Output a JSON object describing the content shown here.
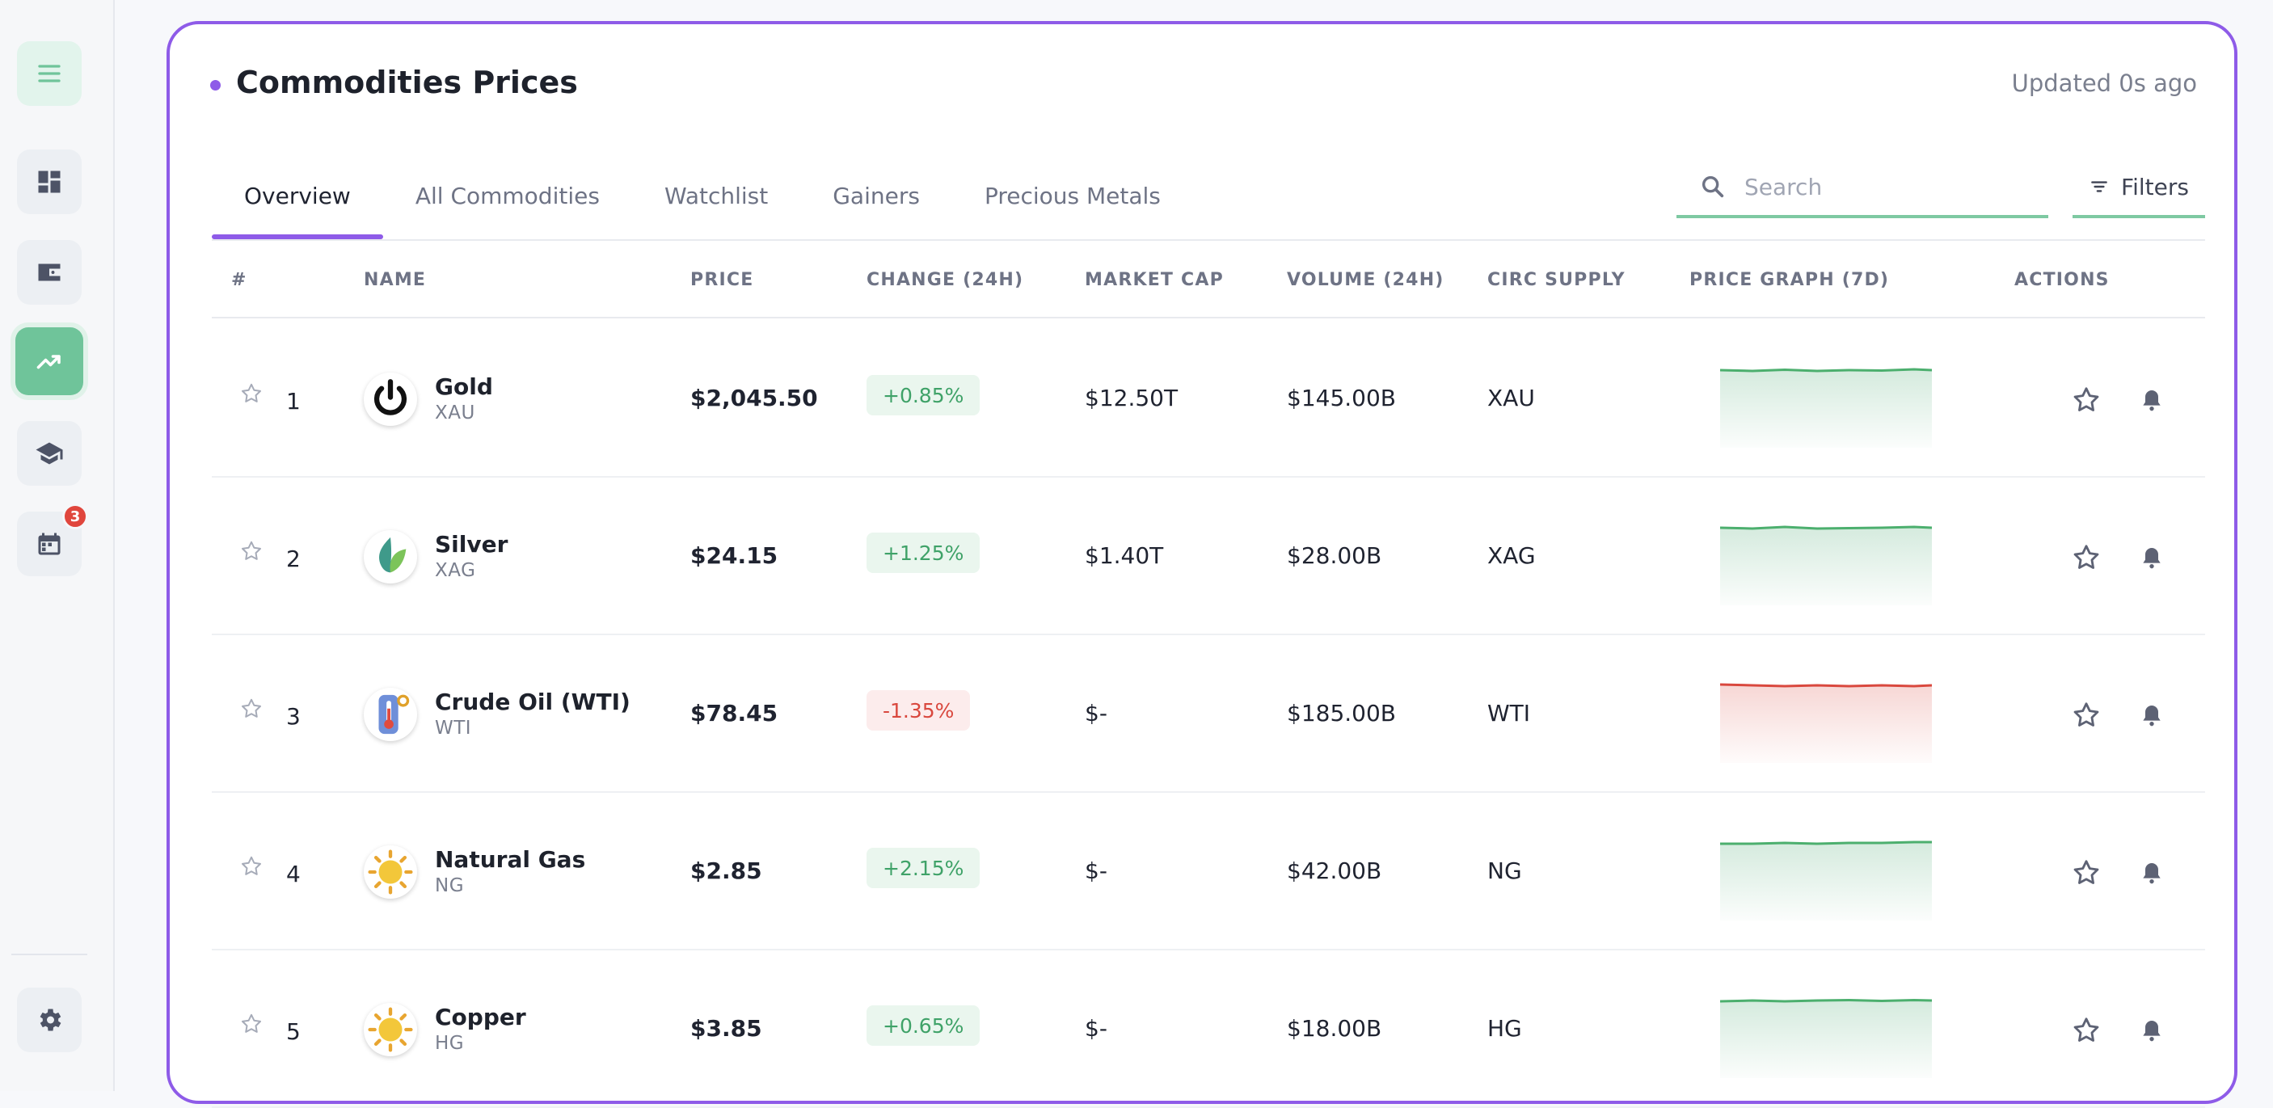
{
  "header": {
    "title": "Commodities Prices",
    "updated": "Updated 0s ago"
  },
  "tabs": [
    {
      "label": "Overview",
      "active": true
    },
    {
      "label": "All Commodities",
      "active": false
    },
    {
      "label": "Watchlist",
      "active": false
    },
    {
      "label": "Gainers",
      "active": false
    },
    {
      "label": "Precious Metals",
      "active": false
    }
  ],
  "search": {
    "placeholder": "Search"
  },
  "filters": {
    "label": "Filters"
  },
  "table": {
    "headers": [
      "#",
      "NAME",
      "PRICE",
      "CHANGE (24H)",
      "MARKET CAP",
      "VOLUME (24H)",
      "CIRC SUPPLY",
      "PRICE GRAPH (7D)",
      "ACTIONS"
    ],
    "rows": [
      {
        "rank": "1",
        "name": "Gold",
        "symbol": "XAU",
        "icon": "power-icon",
        "price": "$2,045.50",
        "change": "+0.85%",
        "trend": "up",
        "market_cap": "$12.50T",
        "volume": "$145.00B",
        "supply": "XAU"
      },
      {
        "rank": "2",
        "name": "Silver",
        "symbol": "XAG",
        "icon": "leaf-icon",
        "price": "$24.15",
        "change": "+1.25%",
        "trend": "up",
        "market_cap": "$1.40T",
        "volume": "$28.00B",
        "supply": "XAG"
      },
      {
        "rank": "3",
        "name": "Crude Oil (WTI)",
        "symbol": "WTI",
        "icon": "thermometer-icon",
        "price": "$78.45",
        "change": "-1.35%",
        "trend": "down",
        "market_cap": "$-",
        "volume": "$185.00B",
        "supply": "WTI"
      },
      {
        "rank": "4",
        "name": "Natural Gas",
        "symbol": "NG",
        "icon": "sun-icon",
        "price": "$2.85",
        "change": "+2.15%",
        "trend": "up",
        "market_cap": "$-",
        "volume": "$42.00B",
        "supply": "NG"
      },
      {
        "rank": "5",
        "name": "Copper",
        "symbol": "HG",
        "icon": "sun-icon",
        "price": "$3.85",
        "change": "+0.65%",
        "trend": "up",
        "market_cap": "$-",
        "volume": "$18.00B",
        "supply": "HG"
      }
    ]
  },
  "sidebar": {
    "items": [
      "menu-icon",
      "dashboard-icon",
      "wallet-icon",
      "trending-up-icon",
      "school-icon",
      "calendar-icon"
    ],
    "badge": "3",
    "footer": "settings-icon"
  },
  "colors": {
    "accent": "#8e5be8",
    "positive": "#3fa268",
    "negative": "#d9483e",
    "sidebar_active": "#6fc49a"
  }
}
